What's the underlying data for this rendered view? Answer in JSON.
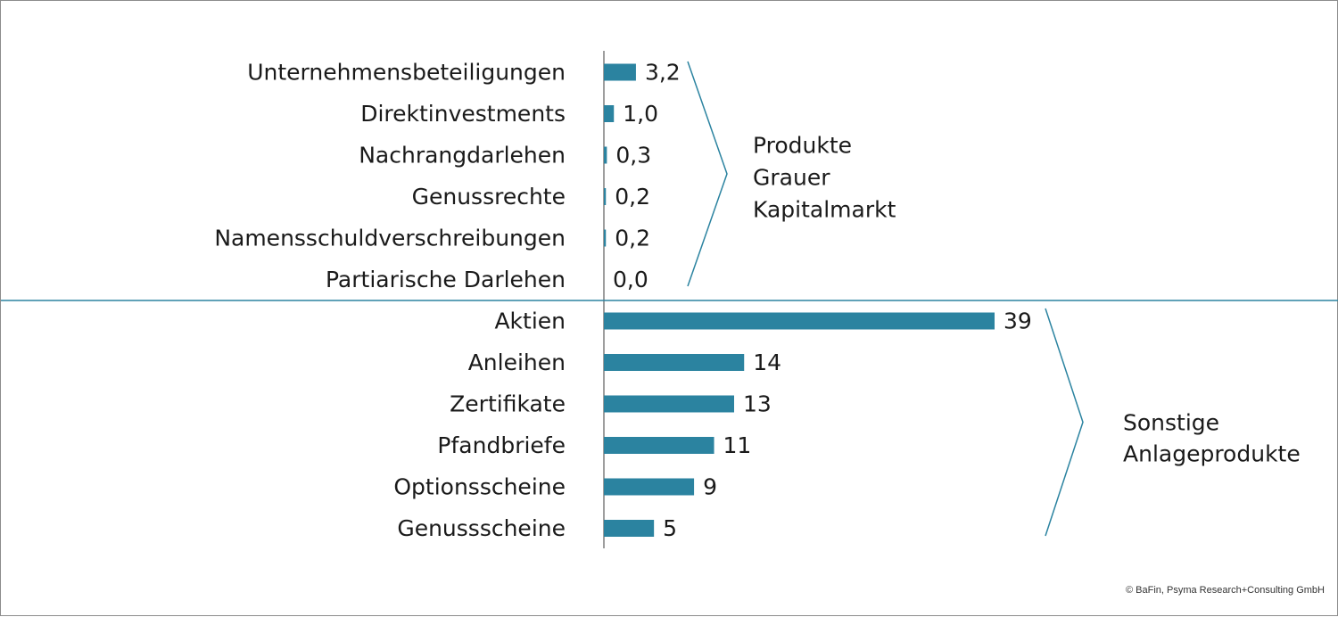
{
  "colors": {
    "bar": "#2b83a0",
    "line": "#2b83a0",
    "axis": "#7f7f7f",
    "text": "#1a1a1a"
  },
  "chart_data": {
    "type": "bar",
    "orientation": "horizontal",
    "categories": [
      "Unternehmensbeteiligungen",
      "Direktinvestments",
      "Nachrangdarlehen",
      "Genussrechte",
      "Namensschuldverschreibungen",
      "Partiarische Darlehen",
      "Aktien",
      "Anleihen",
      "Zertifikate",
      "Pfandbriefe",
      "Optionsscheine",
      "Genussscheine"
    ],
    "values": [
      3.2,
      1.0,
      0.3,
      0.2,
      0.2,
      0.0,
      39,
      14,
      13,
      11,
      9,
      5
    ],
    "value_labels": [
      "3,2",
      "1,0",
      "0,3",
      "0,2",
      "0,2",
      "0,0",
      "39",
      "14",
      "13",
      "11",
      "9",
      "5"
    ],
    "groups": [
      {
        "label_lines": [
          "Produkte",
          "Grauer",
          "Kapitalmarkt"
        ],
        "start": 0,
        "end": 5
      },
      {
        "label_lines": [
          "Sonstige",
          "Anlageprodukte"
        ],
        "start": 6,
        "end": 11
      }
    ],
    "xlim": [
      0,
      39
    ],
    "grid": false,
    "legend": "none"
  },
  "credit": "© BaFin, Psyma Research+Consulting GmbH"
}
